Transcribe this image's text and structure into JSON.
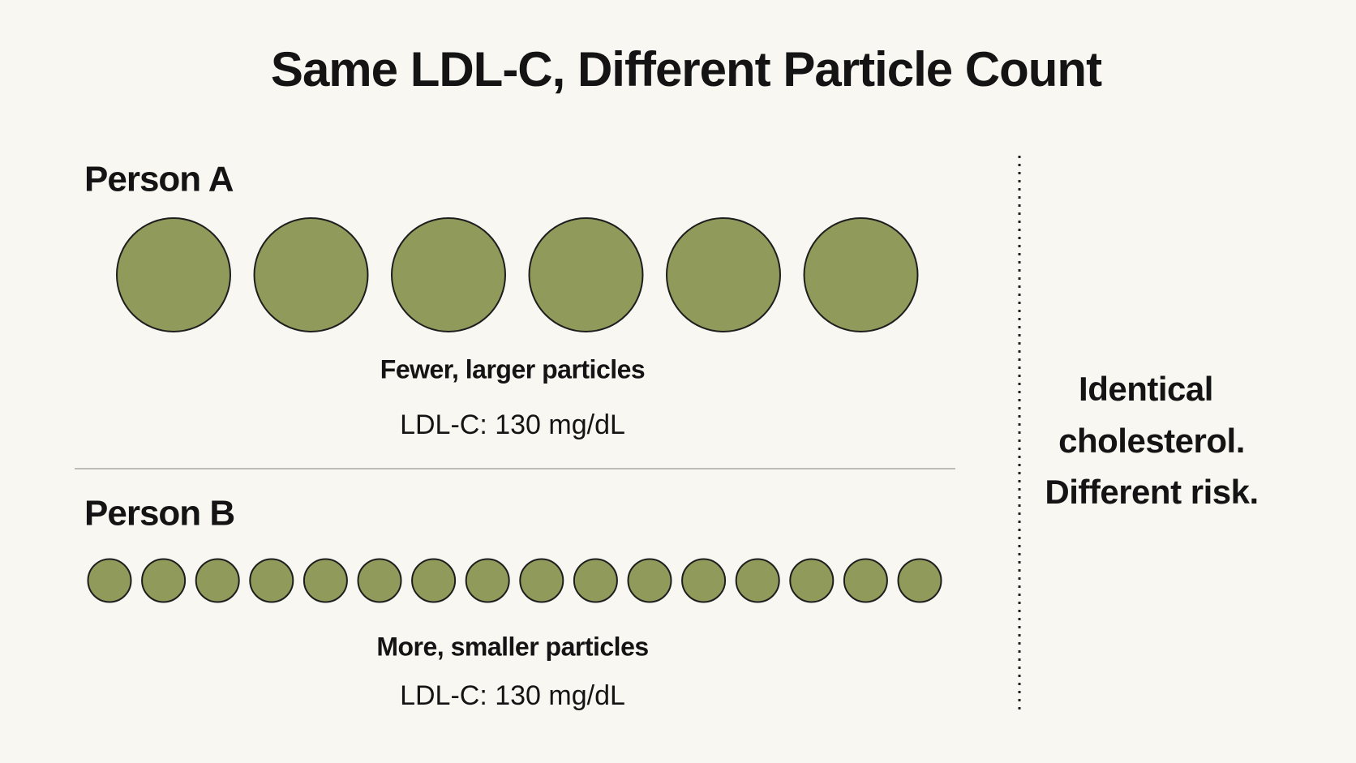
{
  "header": {
    "title": "Same LDL-C, Different Particle Count"
  },
  "person_a": {
    "label": "Person A",
    "caption": "Fewer, larger particles",
    "ldl": "LDL-C: 130 mg/dL"
  },
  "person_b": {
    "label": "Person B",
    "caption": "More, smaller particles",
    "ldl": "LDL-C: 130 mg/dL"
  },
  "side_note": {
    "lines": [
      "Identical",
      "cholesterol.",
      "Different risk."
    ]
  }
}
